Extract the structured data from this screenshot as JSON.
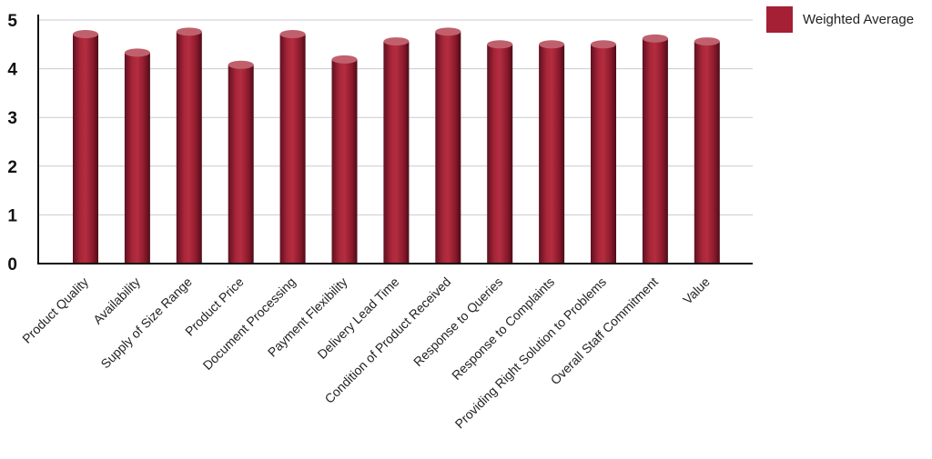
{
  "chart_data": {
    "type": "bar",
    "categories": [
      "Product Quality",
      "Availability",
      "Supply of Size Range",
      "Product Price",
      "Document Processing",
      "Payment Flexibility",
      "Delivery Lead Time",
      "Condition of Product Received",
      "Response to Queries",
      "Response to Complaints",
      "Providing Right Solution to Problems",
      "Overall Staff Commitment",
      "Value"
    ],
    "series": [
      {
        "name": "Weighted Average",
        "values": [
          4.71,
          4.33,
          4.76,
          4.08,
          4.71,
          4.19,
          4.56,
          4.76,
          4.5,
          4.5,
          4.5,
          4.62,
          4.56
        ],
        "color": "#a52035"
      }
    ],
    "yticks": [
      "0",
      "1",
      "2",
      "3",
      "4",
      "5"
    ],
    "ylim": [
      0,
      5
    ],
    "grid": true,
    "legend_position": "top-right",
    "bar_style": "3d-cylinder"
  }
}
